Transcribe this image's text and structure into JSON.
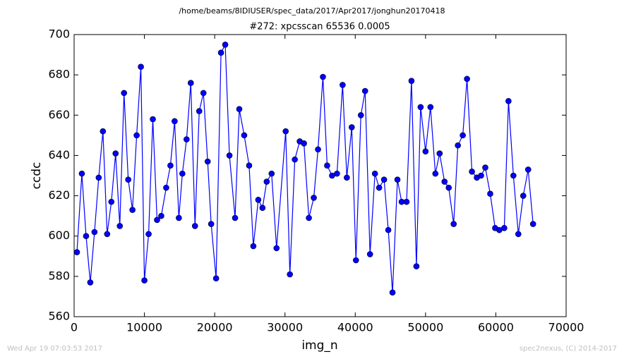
{
  "chart_data": {
    "type": "line",
    "suptitle": "/home/beams/8IDIUSER/spec_data/2017/Apr2017/jonghun20170418",
    "title": "#272: xpcsscan 65536 0.0005",
    "xlabel": "img_n",
    "ylabel": "ccdc",
    "annotations": [
      "Wed Apr 19 07:03:53 2017",
      "spec2nexus, (C) 2014-2017"
    ],
    "xlim": [
      0,
      70000
    ],
    "xticks": [
      0,
      10000,
      20000,
      30000,
      40000,
      50000,
      60000,
      70000
    ],
    "ylim": [
      560,
      700
    ],
    "yticks": [
      560,
      580,
      600,
      620,
      640,
      660,
      680,
      700
    ],
    "grid": false,
    "x": [
      400,
      1100,
      1700,
      2300,
      2900,
      3500,
      4100,
      4700,
      5300,
      5900,
      6500,
      7100,
      7700,
      8300,
      8900,
      9500,
      10000,
      10600,
      11200,
      11800,
      12400,
      13100,
      13700,
      14300,
      14900,
      15400,
      16000,
      16600,
      17200,
      17800,
      18400,
      19000,
      19500,
      20200,
      20900,
      21500,
      22100,
      22900,
      23500,
      24200,
      24900,
      25500,
      26200,
      26800,
      27400,
      28100,
      28800,
      30100,
      30700,
      31400,
      32100,
      32700,
      33400,
      34100,
      34700,
      35400,
      36000,
      36700,
      37400,
      38200,
      38800,
      39500,
      40100,
      40800,
      41400,
      42100,
      42800,
      43400,
      44100,
      44700,
      45300,
      46000,
      46600,
      47300,
      48000,
      48700,
      49300,
      50000,
      50700,
      51400,
      52000,
      52700,
      53300,
      54000,
      54600,
      55300,
      55900,
      56600,
      57300,
      57900,
      58500,
      59200,
      59900,
      60500,
      61200,
      61800,
      62500,
      63200,
      63900,
      64600,
      65300
    ],
    "series": [
      {
        "color": "#0000ff",
        "values": [
          592,
          631,
          600,
          577,
          602,
          629,
          652,
          601,
          617,
          641,
          605,
          671,
          628,
          613,
          650,
          684,
          578,
          601,
          658,
          608,
          610,
          624,
          635,
          657,
          609,
          631,
          648,
          676,
          605,
          662,
          671,
          637,
          606,
          579,
          691,
          695,
          640,
          609,
          663,
          650,
          635,
          595,
          618,
          614,
          627,
          631,
          594,
          652,
          581,
          638,
          647,
          646,
          609,
          619,
          643,
          679,
          635,
          630,
          631,
          675,
          629,
          654,
          588,
          660,
          672,
          591,
          631,
          624,
          628,
          603,
          572,
          628,
          617,
          617,
          677,
          585,
          664,
          642,
          664,
          631,
          641,
          627,
          624,
          606,
          645,
          650,
          678,
          632,
          629,
          630,
          634,
          621,
          604,
          603,
          604,
          667,
          630,
          601,
          620,
          633,
          606
        ]
      }
    ]
  }
}
